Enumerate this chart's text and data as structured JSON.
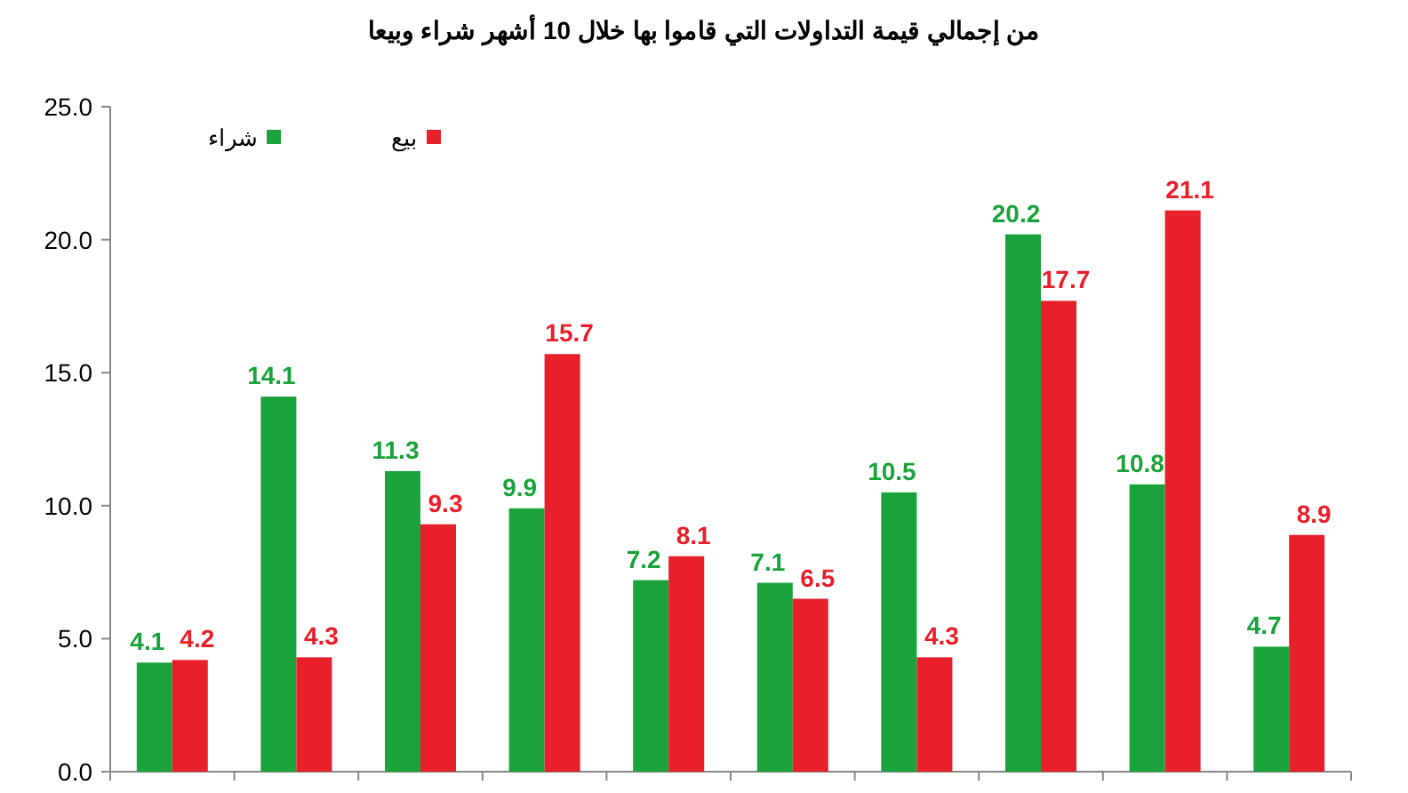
{
  "chart_data": {
    "type": "bar",
    "title": "من إجمالي قيمة التداولات التي قاموا بها خلال 10 أشهر شراء وبيعا",
    "categories": [
      null,
      null,
      null,
      null,
      null,
      null,
      null,
      null,
      null,
      null
    ],
    "series": [
      {
        "name": "شراء",
        "color": "#1aa33a",
        "values": [
          4.1,
          14.1,
          11.3,
          9.9,
          7.2,
          7.1,
          10.5,
          20.2,
          10.8,
          4.7
        ]
      },
      {
        "name": "بيع",
        "color": "#e8202a",
        "values": [
          4.2,
          4.3,
          9.3,
          15.7,
          8.1,
          6.5,
          4.3,
          17.7,
          21.1,
          8.9
        ]
      }
    ],
    "ylim": [
      0,
      25
    ],
    "yticks": [
      {
        "value": 0,
        "label": "0.0"
      },
      {
        "value": 5,
        "label": "5.0"
      },
      {
        "value": 10,
        "label": "10.0"
      },
      {
        "value": 15,
        "label": "15.0"
      },
      {
        "value": 20,
        "label": "20.0"
      },
      {
        "value": 25,
        "label": "25.0"
      }
    ],
    "data_labels": true,
    "grid": false,
    "legend": "top left"
  }
}
